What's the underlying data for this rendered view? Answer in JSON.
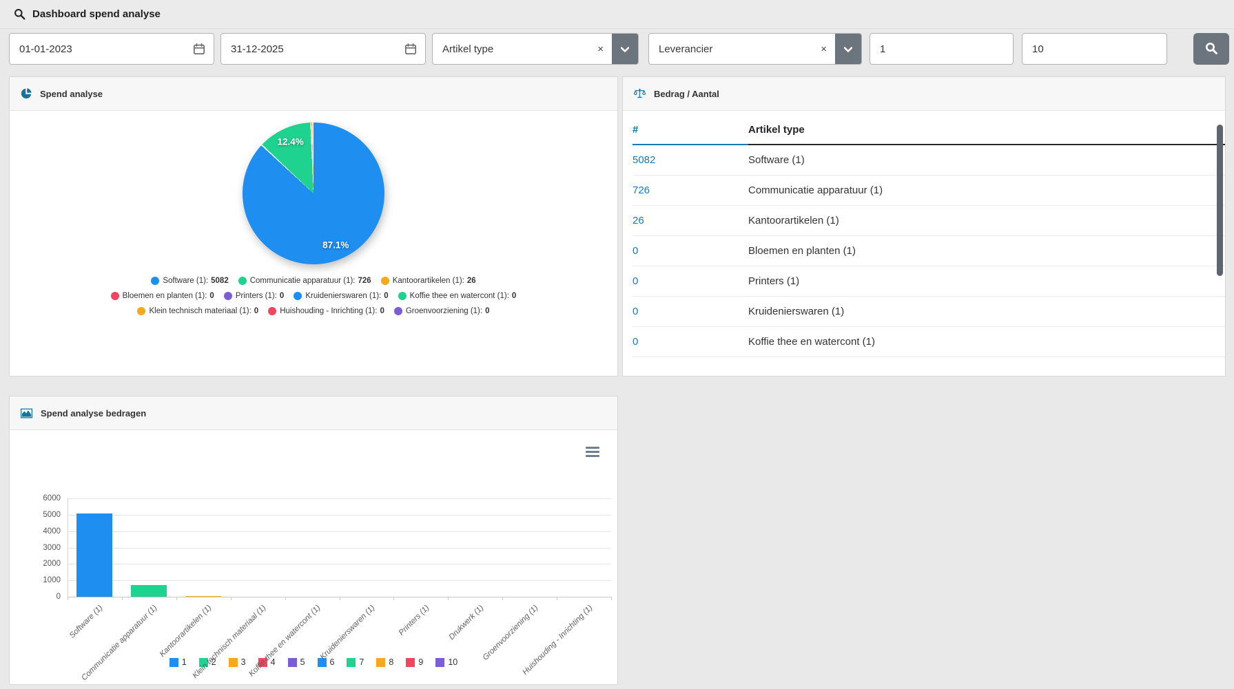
{
  "header": {
    "title": "Dashboard spend analyse"
  },
  "filters": {
    "date_from": "01-01-2023",
    "date_to": "31-12-2025",
    "artikel_type": {
      "value": "Artikel type",
      "clear_label": "×"
    },
    "leverancier": {
      "value": "Leverancier",
      "clear_label": "×"
    },
    "min_value": "1",
    "max_value": "10"
  },
  "icons": {
    "topbar": "search-icon",
    "date_fields": "calendar-icon",
    "selects": "chevron-down-icon",
    "search_button": "search-icon",
    "pie_panel": "pie-chart-icon",
    "table_panel": "balance-scale-icon",
    "bars_panel": "area-chart-icon",
    "chart_menu": "hamburger-menu-icon"
  },
  "colors": {
    "palette": [
      "#1f8ef1",
      "#1fd28f",
      "#f7a81c",
      "#f4455f",
      "#7b5dd6"
    ],
    "link": "#1779ba",
    "accent_underline": "#1779ba",
    "button": "#6c757d",
    "scroll_thumb": "#5d6570"
  },
  "panels": {
    "pie": {
      "title": "Spend analyse"
    },
    "table": {
      "title": "Bedrag / Aantal",
      "columns": [
        "#",
        "Artikel type"
      ],
      "rows": [
        {
          "count": "5082",
          "type": "Software (1)"
        },
        {
          "count": "726",
          "type": "Communicatie apparatuur (1)"
        },
        {
          "count": "26",
          "type": "Kantoorartikelen (1)"
        },
        {
          "count": "0",
          "type": "Bloemen en planten (1)"
        },
        {
          "count": "0",
          "type": "Printers (1)"
        },
        {
          "count": "0",
          "type": "Kruidenierswaren (1)"
        },
        {
          "count": "0",
          "type": "Koffie thee en watercont (1)"
        }
      ]
    },
    "bars": {
      "title": "Spend analyse bedragen"
    }
  },
  "chart_data": [
    {
      "type": "pie",
      "title": "Spend analyse",
      "labels": [
        "Software (1)",
        "Communicatie apparatuur (1)",
        "Kantoorartikelen (1)",
        "Bloemen en planten (1)",
        "Printers (1)",
        "Kruidenierswaren (1)",
        "Koffie thee en watercont (1)",
        "Klein technisch materiaal (1)",
        "Huishouding - Inrichting (1)",
        "Groenvoorziening (1)"
      ],
      "values": [
        5082,
        726,
        26,
        0,
        0,
        0,
        0,
        0,
        0,
        0
      ],
      "slice_labels": [
        "87.1%",
        "12.4%"
      ],
      "legend_position": "bottom"
    },
    {
      "type": "bar",
      "title": "Spend analyse bedragen",
      "categories": [
        "Software (1)",
        "Communicatie apparatuur (1)",
        "Kantoorartikelen (1)",
        "Klein technisch materiaal (1)",
        "Koffie thee en watercont (1)",
        "Kruidenierswaren (1)",
        "Printers (1)",
        "Drukwerk (1)",
        "Groenvoorziening (1)",
        "Huishouding - Inrichting (1)"
      ],
      "values": [
        5082,
        726,
        26,
        0,
        0,
        0,
        0,
        0,
        0,
        0
      ],
      "legend": [
        "1",
        "2",
        "3",
        "4",
        "5",
        "6",
        "7",
        "8",
        "9",
        "10"
      ],
      "xlabel": "",
      "ylabel": "",
      "ylim": [
        0,
        6000
      ],
      "yticks": [
        0,
        1000,
        2000,
        3000,
        4000,
        5000,
        6000
      ],
      "grid": true,
      "legend_position": "bottom"
    }
  ]
}
